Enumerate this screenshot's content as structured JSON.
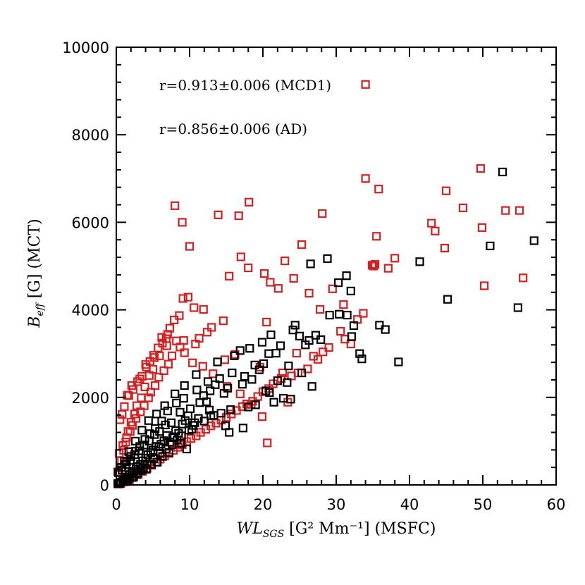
{
  "chart_data": {
    "type": "scatter",
    "xlabel_main": "WL",
    "xlabel_sub": "SGS",
    "xlabel_rest": " [G² Mm⁻¹] (MSFC)",
    "ylabel_main": "B",
    "ylabel_sub": "eff",
    "ylabel_rest": " [G] (MCT)",
    "xlim": [
      0,
      60
    ],
    "ylim": [
      0,
      10000
    ],
    "xticks": [
      "0",
      "10",
      "20",
      "30",
      "40",
      "50",
      "60"
    ],
    "yticks": [
      "0",
      "2000",
      "4000",
      "6000",
      "8000",
      "10000"
    ],
    "annotations": [
      "r=0.913±0.006 (MCD1)",
      "r=0.856±0.006 (AD)"
    ],
    "colors": {
      "MCD1": "#000000",
      "AD": "#d42020"
    },
    "marker": "open-square",
    "series": [
      {
        "key": "MCD1",
        "color": "#000000",
        "x": [
          52.7,
          57.0,
          51.0,
          41.4,
          45.2,
          54.8,
          38.5,
          26.5,
          28.8,
          30.3,
          31.4,
          32.0,
          32.4,
          30.4,
          31.5,
          29.1,
          35.9,
          36.7,
          33.2,
          33.5,
          32.1,
          27.9,
          27.2,
          25.0,
          26.3,
          24.4,
          25.3,
          23.5,
          22.4,
          21.8,
          20.8,
          20.1,
          19.5,
          18.9,
          17.5,
          16.9,
          22.8,
          23.3,
          20.4,
          18.5,
          17.2,
          15.8,
          15.2,
          14.7,
          14.1,
          13.5,
          12.8,
          12.3,
          11.9,
          17.3,
          15.4,
          14.9,
          13.3,
          12.7,
          11.2,
          10.7,
          10.3,
          9.8,
          9.4,
          9.0,
          8.5,
          8.1,
          7.7,
          7.3,
          6.9,
          6.5,
          6.1,
          5.8,
          5.4,
          5.0,
          4.7,
          4.3,
          4.0,
          3.6,
          3.3,
          3.0,
          2.7,
          2.4,
          2.1,
          1.8,
          1.5,
          1.2,
          0.9,
          0.6,
          0.4,
          9.6,
          8.8,
          7.9,
          7.2,
          6.3,
          5.6,
          4.8,
          4.1,
          3.4,
          2.8,
          2.2,
          1.6,
          1.0,
          0.5,
          11.4,
          10.1,
          8.7,
          7.5,
          6.7,
          5.9,
          5.2,
          4.5,
          3.8,
          3.1,
          2.5,
          1.9,
          1.3,
          0.8,
          13.8,
          12.5,
          11.0,
          9.2,
          8.2,
          7.0,
          6.2,
          5.3,
          4.6,
          3.9,
          3.2,
          2.6,
          2.0,
          1.4,
          0.7,
          10.9,
          9.3,
          8.0,
          6.6,
          5.5,
          4.4,
          3.5,
          2.6,
          1.7,
          1.1,
          0.3,
          16.1,
          18.2,
          19.9,
          21.1,
          24.1,
          25.8,
          22.0,
          19.0,
          21.5,
          23.8,
          26.7,
          20.9,
          18.0,
          15.6,
          14.3,
          12.9,
          12.0,
          10.5,
          9.9,
          8.9,
          8.3,
          7.6,
          6.8,
          6.0,
          5.1,
          4.2,
          3.7,
          2.9,
          2.3,
          1.6,
          0.9,
          0.2
        ],
        "y": [
          7150,
          5580,
          5460,
          5100,
          4240,
          4050,
          2810,
          5050,
          5170,
          4620,
          4780,
          4430,
          3640,
          3900,
          3880,
          3880,
          3650,
          3550,
          3000,
          2880,
          3390,
          3320,
          3420,
          3400,
          3300,
          3650,
          2560,
          2720,
          3180,
          3010,
          3000,
          2770,
          2630,
          2740,
          2480,
          3070,
          1980,
          2340,
          2150,
          2410,
          2300,
          2560,
          2210,
          2090,
          2430,
          2290,
          2150,
          1900,
          2040,
          1300,
          1200,
          1350,
          1590,
          1710,
          1520,
          1420,
          1270,
          1580,
          1470,
          1390,
          1180,
          1240,
          1080,
          980,
          1130,
          1010,
          930,
          870,
          880,
          790,
          740,
          690,
          610,
          550,
          470,
          420,
          360,
          310,
          270,
          230,
          180,
          140,
          100,
          60,
          30,
          820,
          950,
          1100,
          740,
          650,
          520,
          470,
          360,
          330,
          240,
          170,
          120,
          80,
          40,
          1880,
          1740,
          1660,
          1420,
          1370,
          1220,
          1150,
          1000,
          910,
          780,
          690,
          560,
          470,
          340,
          2810,
          2360,
          2170,
          1980,
          1870,
          1690,
          1460,
          1290,
          1170,
          1040,
          880,
          770,
          650,
          530,
          400,
          2520,
          2270,
          2080,
          1810,
          1620,
          1470,
          1250,
          1000,
          760,
          540,
          280,
          2950,
          3120,
          3260,
          3430,
          3540,
          3200,
          2380,
          1830,
          1890,
          1960,
          2250,
          2110,
          1780,
          1720,
          1640,
          1580,
          1460,
          1360,
          1250,
          1120,
          1030,
          920,
          820,
          720,
          600,
          480,
          380,
          270,
          190,
          140,
          80,
          30
        ]
      },
      {
        "key": "AD",
        "color": "#d42020",
        "x": [
          34.0,
          49.7,
          34.0,
          35.8,
          44.8,
          47.3,
          53.1,
          55.0,
          43.0,
          49.9,
          43.5,
          35.5,
          45.0,
          38.0,
          55.5,
          50.2,
          8.0,
          9.0,
          10.0,
          13.9,
          16.7,
          18.1,
          28.1,
          25.3,
          15.4,
          17.0,
          18.0,
          20.2,
          21.0,
          22.1,
          23.0,
          24.2,
          26.3,
          27.8,
          29.5,
          31.0,
          32.9,
          33.7,
          35.3,
          34.9,
          35.1,
          37.1,
          31.2,
          29.0,
          28.2,
          27.5,
          26.1,
          24.8,
          23.9,
          22.5,
          21.4,
          20.8,
          20.0,
          19.3,
          18.6,
          17.8,
          17.2,
          16.4,
          15.7,
          15.0,
          14.3,
          13.6,
          12.9,
          12.2,
          11.5,
          10.9,
          10.2,
          9.6,
          9.0,
          8.4,
          7.8,
          7.2,
          6.6,
          6.0,
          5.4,
          4.8,
          4.2,
          3.6,
          3.0,
          2.4,
          1.8,
          1.2,
          0.6,
          0.3,
          20.6,
          23.4,
          19.9,
          18.4,
          16.9,
          15.1,
          13.2,
          11.8,
          10.4,
          9.3,
          8.2,
          7.0,
          6.2,
          5.1,
          4.0,
          3.2,
          2.1,
          1.5,
          0.8,
          11.9,
          10.6,
          9.8,
          9.1,
          8.6,
          7.9,
          7.3,
          6.8,
          6.3,
          5.7,
          5.2,
          4.6,
          4.1,
          3.5,
          2.9,
          2.3,
          1.7,
          1.1,
          0.5,
          9.2,
          8.7,
          7.6,
          7.1,
          6.5,
          5.8,
          5.3,
          4.7,
          4.4,
          3.8,
          3.3,
          2.7,
          2.2,
          1.9,
          1.4,
          0.9,
          0.4,
          6.9,
          5.9,
          5.0,
          4.5,
          3.9,
          3.4,
          2.8,
          2.5,
          2.0,
          1.6,
          1.3,
          1.0,
          0.7,
          0.2,
          14.6,
          13.0,
          12.4,
          11.3,
          10.8,
          20.5,
          24.6,
          30.6,
          32.0,
          26.9,
          22.7,
          19.6,
          16.2,
          14.8
        ],
        "y": [
          9150,
          7230,
          7000,
          6760,
          5410,
          6330,
          6270,
          6270,
          5980,
          5880,
          5800,
          5680,
          6720,
          5180,
          4730,
          4550,
          6380,
          6000,
          5450,
          6170,
          6150,
          6460,
          6200,
          5490,
          4770,
          5210,
          4960,
          4830,
          4630,
          4490,
          5120,
          4720,
          4380,
          4010,
          4480,
          4120,
          3780,
          3920,
          5040,
          5020,
          5000,
          4950,
          3330,
          3140,
          3040,
          2870,
          2650,
          2560,
          2490,
          2430,
          2310,
          2200,
          2130,
          2020,
          1910,
          1850,
          1790,
          1700,
          1620,
          1540,
          1480,
          1410,
          1350,
          1270,
          1200,
          1120,
          1060,
          990,
          920,
          860,
          790,
          720,
          660,
          590,
          520,
          450,
          380,
          310,
          240,
          180,
          120,
          70,
          30,
          20,
          960,
          1890,
          1560,
          1840,
          2080,
          2250,
          2540,
          2710,
          2790,
          3020,
          3290,
          3440,
          3370,
          2960,
          2750,
          2420,
          2270,
          2050,
          1610,
          4010,
          4050,
          4290,
          4260,
          3870,
          3770,
          3580,
          3340,
          3240,
          3130,
          2910,
          2820,
          2690,
          2480,
          2360,
          2180,
          2040,
          1790,
          1490,
          3300,
          3150,
          2950,
          2760,
          2610,
          2460,
          2270,
          2120,
          1990,
          1810,
          1670,
          1520,
          1360,
          1220,
          1080,
          900,
          720,
          3180,
          2950,
          2640,
          2500,
          2240,
          1990,
          1810,
          1620,
          1430,
          1220,
          980,
          790,
          550,
          300,
          3750,
          3600,
          3490,
          3350,
          3220,
          3720,
          3010,
          3510,
          3220,
          2940,
          2560,
          2690,
          2980,
          2860
        ]
      }
    ]
  }
}
